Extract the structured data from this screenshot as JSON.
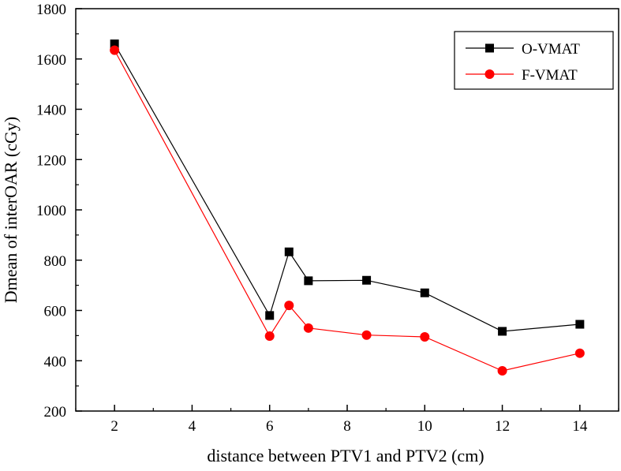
{
  "chart_data": {
    "type": "line",
    "xlabel": "distance between PTV1 and PTV2 (cm)",
    "ylabel": "Dmean of interOAR (cGy)",
    "xlim": [
      1,
      15
    ],
    "ylim": [
      200,
      1800
    ],
    "xticks": [
      2,
      4,
      6,
      8,
      10,
      12,
      14
    ],
    "yticks": [
      200,
      400,
      600,
      800,
      1000,
      1200,
      1400,
      1600,
      1800
    ],
    "x": [
      2,
      6,
      6.5,
      7,
      8.5,
      10,
      12,
      14
    ],
    "series": [
      {
        "name": "O-VMAT",
        "color": "#000000",
        "marker": "square",
        "values": [
          1660,
          580,
          833,
          718,
          720,
          670,
          517,
          545
        ]
      },
      {
        "name": "F-VMAT",
        "color": "#ff0000",
        "marker": "circle",
        "values": [
          1635,
          498,
          620,
          530,
          502,
          495,
          360,
          430
        ]
      }
    ],
    "legend_position": "top-right",
    "grid": false
  }
}
